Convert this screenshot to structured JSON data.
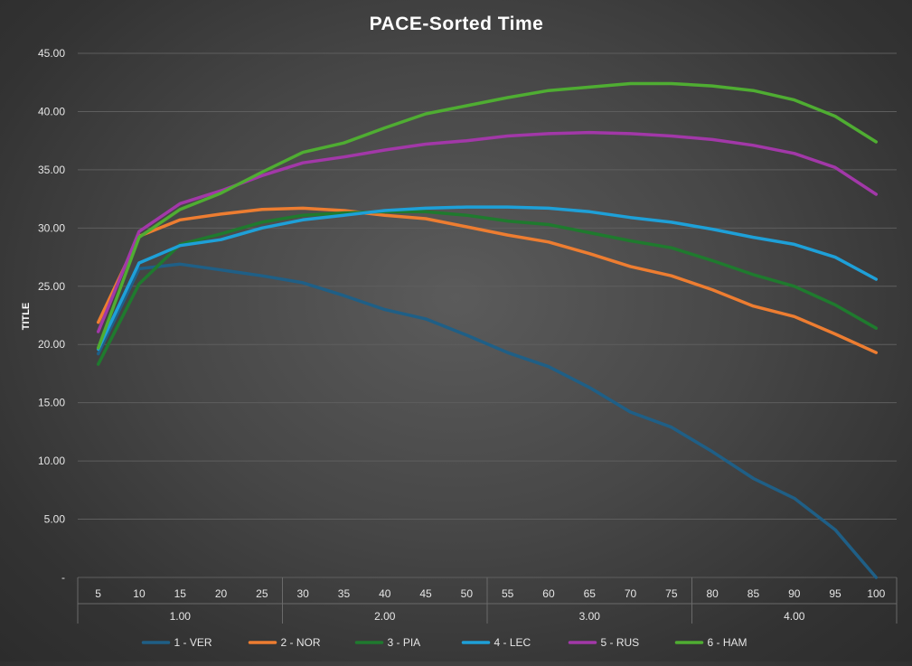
{
  "chart_data": {
    "type": "line",
    "title": "PACE-Sorted Time",
    "xlabel": "",
    "ylabel": "TITLE",
    "ylim": [
      0,
      45
    ],
    "ytick_values": [
      0,
      5,
      10,
      15,
      20,
      25,
      30,
      35,
      40,
      45
    ],
    "ytick_labels": [
      "-",
      "5.00",
      "10.00",
      "15.00",
      "20.00",
      "25.00",
      "30.00",
      "35.00",
      "40.00",
      "45.00"
    ],
    "categories": [
      "5",
      "10",
      "15",
      "20",
      "25",
      "30",
      "35",
      "40",
      "45",
      "50",
      "55",
      "60",
      "65",
      "70",
      "75",
      "80",
      "85",
      "90",
      "95",
      "100"
    ],
    "category_groups": [
      {
        "label": "1.00",
        "span": 5
      },
      {
        "label": "2.00",
        "span": 5
      },
      {
        "label": "3.00",
        "span": 5
      },
      {
        "label": "4.00",
        "span": 5
      }
    ],
    "series": [
      {
        "name": "1 - VER",
        "color": "#1f5f86",
        "values": [
          19.2,
          26.5,
          26.9,
          26.4,
          25.9,
          25.3,
          24.2,
          23.0,
          22.2,
          20.8,
          19.3,
          18.1,
          16.3,
          14.2,
          12.9,
          10.8,
          8.5,
          6.8,
          4.1,
          0.0
        ]
      },
      {
        "name": "2 - NOR",
        "color": "#ed7d31",
        "values": [
          21.9,
          29.3,
          30.7,
          31.2,
          31.6,
          31.7,
          31.5,
          31.1,
          30.8,
          30.1,
          29.4,
          28.8,
          27.8,
          26.7,
          25.9,
          24.7,
          23.3,
          22.4,
          20.9,
          19.3
        ]
      },
      {
        "name": "3 - PIA",
        "color": "#1f7a2e",
        "values": [
          18.3,
          25.2,
          28.6,
          29.5,
          30.5,
          31.1,
          31.3,
          31.4,
          31.4,
          31.1,
          30.6,
          30.3,
          29.6,
          28.9,
          28.3,
          27.2,
          26.0,
          25.0,
          23.4,
          21.4
        ]
      },
      {
        "name": "4 - LEC",
        "color": "#1ea0d8",
        "values": [
          19.6,
          27.0,
          28.5,
          29.0,
          30.0,
          30.7,
          31.1,
          31.5,
          31.7,
          31.8,
          31.8,
          31.7,
          31.4,
          30.9,
          30.5,
          29.9,
          29.2,
          28.6,
          27.5,
          25.6
        ]
      },
      {
        "name": "5 - RUS",
        "color": "#a238a8",
        "values": [
          21.1,
          29.7,
          32.1,
          33.2,
          34.5,
          35.6,
          36.1,
          36.7,
          37.2,
          37.5,
          37.9,
          38.1,
          38.2,
          38.1,
          37.9,
          37.6,
          37.1,
          36.4,
          35.2,
          32.9
        ]
      },
      {
        "name": "6 - HAM",
        "color": "#4fad32",
        "values": [
          19.7,
          29.2,
          31.6,
          33.0,
          34.8,
          36.5,
          37.3,
          38.6,
          39.8,
          40.5,
          41.2,
          41.8,
          42.1,
          42.4,
          42.4,
          42.2,
          41.8,
          41.0,
          39.6,
          37.4
        ]
      }
    ],
    "legend_position": "bottom",
    "grid": true
  }
}
